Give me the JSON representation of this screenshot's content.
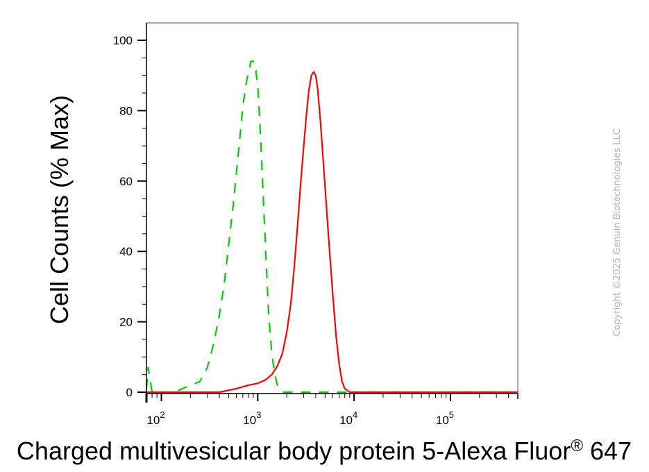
{
  "chart_data": {
    "type": "line",
    "title": "",
    "xlabel_main": "Charged multivesicular body protein 5-Alexa Fluor",
    "xlabel_reg": "®",
    "xlabel_tail": " 647",
    "ylabel": "Cell Counts (% Max)",
    "x_scale": "log",
    "xlim": [
      70,
      500000
    ],
    "ylim": [
      0,
      100
    ],
    "y_ticks": [
      0,
      20,
      40,
      60,
      80,
      100
    ],
    "x_ticks": [
      {
        "value": 100,
        "base": "10",
        "exp": "2"
      },
      {
        "value": 1000,
        "base": "10",
        "exp": "3"
      },
      {
        "value": 10000,
        "base": "10",
        "exp": "4"
      },
      {
        "value": 100000,
        "base": "10",
        "exp": "5"
      }
    ],
    "grid": false,
    "series": [
      {
        "color": "#00cc00",
        "dash": "dashed",
        "x": [
          70,
          73,
          80,
          95,
          120,
          150,
          200,
          250,
          300,
          350,
          400,
          450,
          500,
          550,
          600,
          650,
          700,
          750,
          800,
          850,
          900,
          950,
          1000,
          1050,
          1100,
          1150,
          1200,
          1250,
          1300,
          1400,
          1500,
          1600,
          1700,
          1800,
          2000,
          2500,
          3000,
          5000,
          10000,
          100000,
          500000
        ],
        "y": [
          1,
          7,
          0,
          0,
          0,
          0.5,
          2,
          3,
          7,
          14,
          22,
          31,
          42,
          52,
          62,
          72,
          81,
          87,
          91,
          94,
          94,
          92,
          87,
          77,
          65,
          53,
          42,
          31,
          22,
          11,
          5,
          2,
          1,
          0,
          0,
          0,
          0,
          0,
          0,
          0,
          0
        ]
      },
      {
        "color": "#ff0000",
        "dash": "solid",
        "x": [
          70,
          200,
          400,
          600,
          800,
          1000,
          1200,
          1400,
          1600,
          1800,
          2000,
          2200,
          2400,
          2600,
          2800,
          3000,
          3200,
          3400,
          3600,
          3800,
          4000,
          4200,
          4500,
          5000,
          5500,
          6000,
          6500,
          7000,
          7500,
          8000,
          9000,
          10000,
          12000,
          20000,
          100000,
          500000
        ],
        "y": [
          0,
          0,
          0,
          1,
          2,
          2.5,
          3.5,
          5,
          7.5,
          11,
          17,
          25,
          36,
          48,
          60,
          70,
          79,
          86,
          90,
          91,
          90,
          86,
          76,
          58,
          42,
          28,
          16,
          8,
          3,
          1,
          0,
          0,
          0,
          0,
          0,
          0
        ]
      }
    ]
  },
  "watermark": "Copyright ©2025 Genuin Biotechnologies LLC"
}
